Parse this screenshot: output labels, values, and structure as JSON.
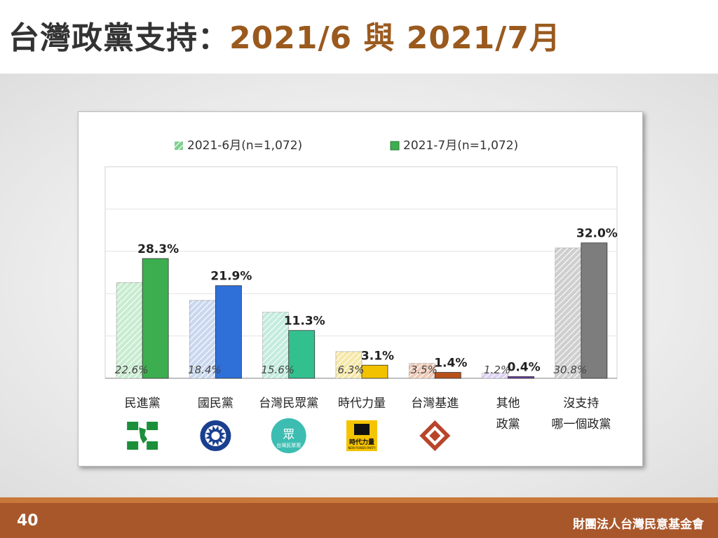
{
  "slide": {
    "title_prefix": "台灣政黨支持：",
    "title_dates": "2021/6 與 2021/7月",
    "page_number": "40",
    "organization": "財團法人台灣民意基金會"
  },
  "chart_data": {
    "type": "bar",
    "ylim": [
      0,
      50
    ],
    "grid": true,
    "legend_position": "top",
    "categories": [
      {
        "lines": [
          "民進黨"
        ]
      },
      {
        "lines": [
          "國民黨"
        ]
      },
      {
        "lines": [
          "台灣民眾黨"
        ]
      },
      {
        "lines": [
          "時代力量"
        ]
      },
      {
        "lines": [
          "台灣基進"
        ]
      },
      {
        "lines": [
          "其他",
          "政黨"
        ]
      },
      {
        "lines": [
          "沒支持",
          "哪一個政黨"
        ]
      }
    ],
    "series": [
      {
        "name": "2021-6月(n=1,072)",
        "values": [
          22.6,
          18.4,
          15.6,
          6.3,
          3.5,
          1.2,
          30.8
        ],
        "labels": [
          "22.6%",
          "18.4%",
          "15.6%",
          "6.3%",
          "3.5%",
          "1.2%",
          "30.8%"
        ],
        "style": "hatched"
      },
      {
        "name": "2021-7月(n=1,072)",
        "values": [
          28.3,
          21.9,
          11.3,
          3.1,
          1.4,
          0.4,
          32.0
        ],
        "labels": [
          "28.3%",
          "21.9%",
          "11.3%",
          "3.1%",
          "1.4%",
          "0.4%",
          "32.0%"
        ],
        "style": "solid"
      }
    ],
    "colors": {
      "jun": [
        "#c8ecd0",
        "#c9d8ef",
        "#c3ecde",
        "#f6e8a8",
        "#eec9b5",
        "#ddd3f2",
        "#cfcfcf"
      ],
      "jul": [
        "#3dae4f",
        "#2f6fd8",
        "#33c08f",
        "#f2c200",
        "#b8501a",
        "#6a3aa8",
        "#7d7d7d"
      ],
      "legend_jun": "#7fcf8f",
      "legend_jul": "#3dae4f"
    },
    "logos": [
      {
        "icon": "dpp-flag-icon"
      },
      {
        "icon": "kmt-sun-icon"
      },
      {
        "icon": "tpp-logo-icon",
        "text": "眾",
        "subtext": "台灣民眾黨"
      },
      {
        "icon": "npp-logo-icon",
        "text": "時代力量",
        "subtext": "NEW POWER PARTY"
      },
      {
        "icon": "tsp-logo-icon"
      }
    ]
  }
}
